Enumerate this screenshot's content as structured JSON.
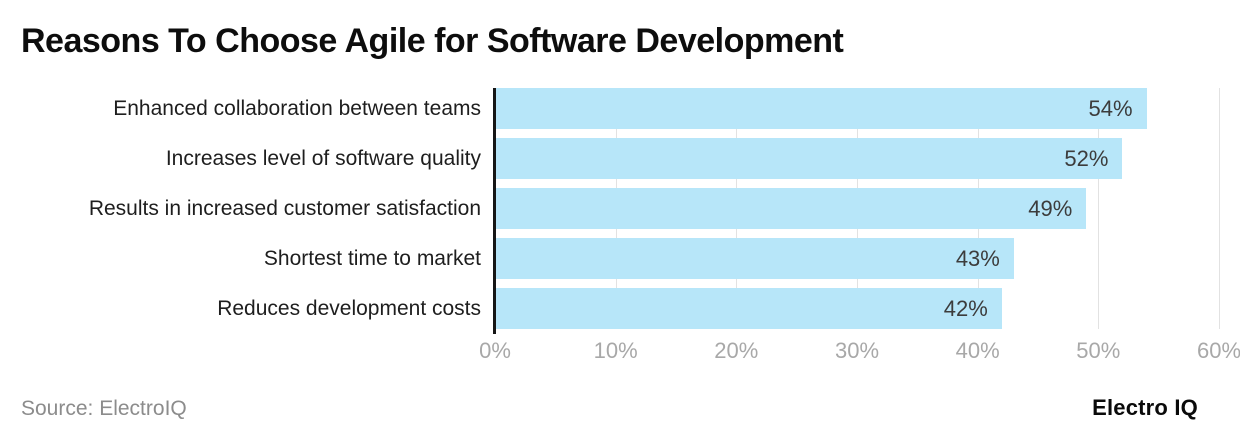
{
  "title": "Reasons To Choose Agile for Software Development",
  "source_note": "Source: ElectroIQ",
  "brand": "Electro IQ",
  "colors": {
    "bar": "#b7e6f9",
    "axis_line": "#161616",
    "gridline": "#e2e2e2",
    "tick_label": "#a8a8a8",
    "value_label": "#3c3c3c",
    "category_label": "#1e1e1e"
  },
  "chart_data": {
    "type": "bar",
    "orientation": "horizontal",
    "title": "Reasons To Choose Agile for Software Development",
    "categories": [
      "Enhanced collaboration between teams",
      "Increases level of software quality",
      "Results in increased customer satisfaction",
      "Shortest time to market",
      "Reduces development costs"
    ],
    "values": [
      54,
      52,
      49,
      43,
      42
    ],
    "value_labels": [
      "54%",
      "52%",
      "49%",
      "43%",
      "42%"
    ],
    "xlabel": "",
    "ylabel": "",
    "xlim": [
      0,
      60
    ],
    "tick_labels": [
      "0%",
      "10%",
      "20%",
      "30%",
      "40%",
      "50%",
      "60%"
    ],
    "grid": true,
    "legend": false
  }
}
